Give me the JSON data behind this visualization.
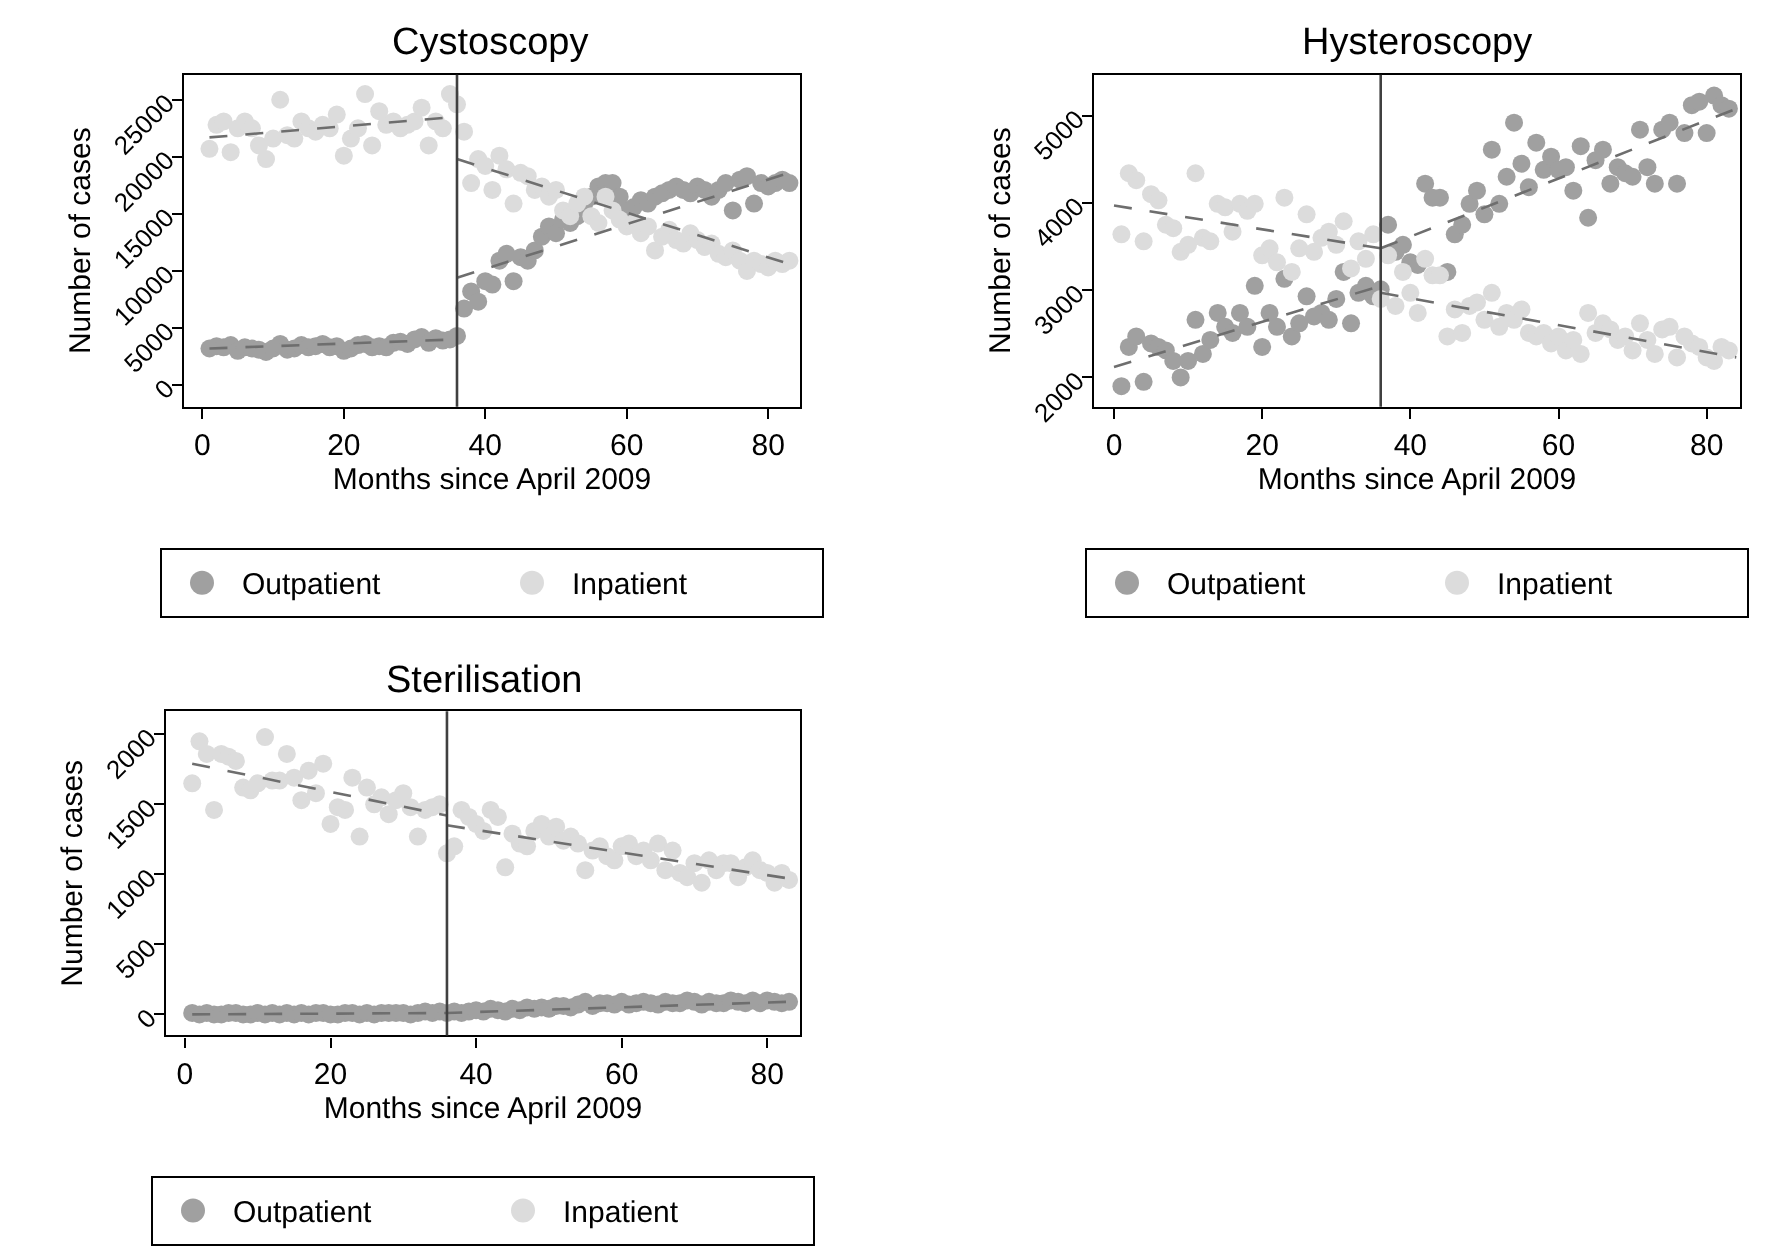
{
  "chart_data": [
    {
      "type": "scatter",
      "title": "Cystoscopy",
      "xlabel": "Months since April 2009",
      "ylabel": "Number of cases",
      "xlim": [
        -2.6,
        84.5
      ],
      "xticks": [
        0,
        20,
        40,
        60,
        80
      ],
      "ylim": [
        -1900,
        27200
      ],
      "yticks": [
        0,
        5000,
        10000,
        15000,
        20000,
        25000
      ],
      "grid": false,
      "legend": "bottom",
      "marker": "circle",
      "ref_lines": [
        {
          "axis": "x",
          "value": 36,
          "color": "#404040"
        }
      ],
      "series": [
        {
          "name": "Outpatient",
          "color": "#a0a0a0",
          "x": [
            1,
            2,
            3,
            4,
            5,
            6,
            7,
            8,
            9,
            10,
            11,
            12,
            13,
            14,
            15,
            16,
            17,
            18,
            19,
            20,
            21,
            22,
            23,
            24,
            25,
            26,
            27,
            28,
            29,
            30,
            31,
            32,
            33,
            34,
            35,
            36,
            37,
            38,
            39,
            40,
            41,
            42,
            43,
            44,
            45,
            46,
            47,
            48,
            49,
            50,
            51,
            52,
            53,
            54,
            55,
            56,
            57,
            58,
            59,
            60,
            61,
            62,
            63,
            64,
            65,
            66,
            67,
            68,
            69,
            70,
            71,
            72,
            73,
            74,
            75,
            76,
            77,
            78,
            79,
            80,
            81,
            82,
            83
          ],
          "values": [
            3200,
            3400,
            3300,
            3500,
            3000,
            3300,
            3200,
            3100,
            2900,
            3200,
            3600,
            3100,
            3200,
            3500,
            3300,
            3400,
            3600,
            3300,
            3400,
            3000,
            3200,
            3500,
            3600,
            3300,
            3400,
            3300,
            3700,
            3800,
            3600,
            4000,
            4200,
            3700,
            4100,
            3900,
            4000,
            4300,
            6700,
            8200,
            7300,
            9100,
            8800,
            10900,
            11500,
            9100,
            11200,
            10900,
            11800,
            13000,
            13900,
            13300,
            14500,
            14200,
            14800,
            15900,
            16500,
            17400,
            17700,
            17700,
            16500,
            15300,
            15600,
            16200,
            15900,
            16500,
            16800,
            17100,
            17400,
            17100,
            16800,
            17400,
            17100,
            16500,
            17100,
            17700,
            15300,
            18000,
            18300,
            15900,
            17700,
            17400,
            17700,
            18000,
            17700
          ]
        },
        {
          "name": "Inpatient",
          "color": "#dcdcdc",
          "x": [
            1,
            2,
            3,
            4,
            5,
            6,
            7,
            8,
            9,
            10,
            11,
            12,
            13,
            14,
            15,
            16,
            17,
            18,
            19,
            20,
            21,
            22,
            23,
            24,
            25,
            26,
            27,
            28,
            29,
            30,
            31,
            32,
            33,
            34,
            35,
            36,
            37,
            38,
            39,
            40,
            41,
            42,
            43,
            44,
            45,
            46,
            47,
            48,
            49,
            50,
            51,
            52,
            53,
            54,
            55,
            56,
            57,
            58,
            59,
            60,
            61,
            62,
            63,
            64,
            65,
            66,
            67,
            68,
            69,
            70,
            71,
            72,
            73,
            74,
            75,
            76,
            77,
            78,
            79,
            80,
            81,
            82,
            83
          ],
          "values": [
            20700,
            22800,
            23100,
            20400,
            22500,
            23100,
            22500,
            21000,
            19800,
            21600,
            25000,
            21900,
            21600,
            23100,
            22500,
            22200,
            22800,
            22500,
            23700,
            20100,
            21600,
            22500,
            25500,
            21000,
            24000,
            22800,
            23100,
            22500,
            22800,
            23100,
            24300,
            21000,
            23100,
            22500,
            25500,
            24600,
            22200,
            17700,
            19800,
            19200,
            17100,
            20100,
            18900,
            15900,
            18600,
            18300,
            17100,
            17400,
            16500,
            17100,
            15300,
            14800,
            15900,
            16500,
            14800,
            14200,
            16500,
            15300,
            14500,
            13900,
            14200,
            13300,
            13900,
            11800,
            13000,
            13600,
            12700,
            12400,
            13300,
            12700,
            12100,
            12400,
            11500,
            11200,
            11800,
            10900,
            10000,
            10900,
            10600,
            10300,
            10900,
            10600,
            10900
          ]
        },
        {
          "type": "line",
          "color": "#6e6e6e",
          "line_style": "dashed",
          "marker": "none",
          "x": [
            1,
            36
          ],
          "values": [
            3200,
            4000
          ]
        },
        {
          "type": "line",
          "color": "#6e6e6e",
          "line_style": "dashed",
          "marker": "none",
          "x": [
            36,
            83
          ],
          "values": [
            9400,
            18600
          ]
        },
        {
          "type": "line",
          "color": "#6e6e6e",
          "line_style": "dashed",
          "marker": "none",
          "x": [
            1,
            36
          ],
          "values": [
            21700,
            23500
          ]
        },
        {
          "type": "line",
          "color": "#6e6e6e",
          "line_style": "dashed",
          "marker": "none",
          "x": [
            36,
            83
          ],
          "values": [
            19800,
            10600
          ]
        }
      ]
    },
    {
      "type": "scatter",
      "title": "Hysteroscopy",
      "xlabel": "Months since April 2009",
      "ylabel": "Number of cases",
      "xlim": [
        -2.7,
        84.5
      ],
      "xticks": [
        0,
        20,
        40,
        60,
        80
      ],
      "ylim": [
        1665,
        5470
      ],
      "yticks": [
        2000,
        3000,
        4000,
        5000
      ],
      "grid": false,
      "legend": "bottom",
      "marker": "circle",
      "ref_lines": [
        {
          "axis": "x",
          "value": 36,
          "color": "#404040"
        }
      ],
      "series": [
        {
          "name": "Outpatient",
          "color": "#a0a0a0",
          "x": [
            1,
            2,
            3,
            4,
            5,
            6,
            7,
            8,
            9,
            10,
            11,
            12,
            13,
            14,
            15,
            16,
            17,
            18,
            19,
            20,
            21,
            22,
            23,
            24,
            25,
            26,
            27,
            28,
            29,
            30,
            31,
            32,
            33,
            34,
            35,
            36,
            37,
            38,
            39,
            40,
            41,
            42,
            43,
            44,
            45,
            46,
            47,
            48,
            49,
            50,
            51,
            52,
            53,
            54,
            55,
            56,
            57,
            58,
            59,
            60,
            61,
            62,
            63,
            64,
            65,
            66,
            67,
            68,
            69,
            70,
            71,
            72,
            73,
            74,
            75,
            76,
            77,
            78,
            79,
            80,
            81,
            82,
            83
          ],
          "values": [
            1900,
            2350,
            2470,
            1950,
            2390,
            2350,
            2310,
            2190,
            2000,
            2190,
            2660,
            2270,
            2430,
            2740,
            2580,
            2510,
            2740,
            2580,
            3050,
            2350,
            2740,
            2580,
            3130,
            2470,
            2620,
            2930,
            2700,
            2740,
            2660,
            2900,
            3210,
            2620,
            2970,
            3050,
            2930,
            3010,
            3750,
            3440,
            3520,
            3320,
            3290,
            4220,
            4060,
            4060,
            3210,
            3640,
            3750,
            3990,
            4140,
            3870,
            4610,
            3990,
            4300,
            4920,
            4450,
            4180,
            4690,
            4380,
            4530,
            4380,
            4410,
            4140,
            4650,
            3830,
            4490,
            4610,
            4220,
            4410,
            4340,
            4300,
            4840,
            4410,
            4220,
            4840,
            4920,
            4220,
            4800,
            5120,
            5160,
            4800,
            5230,
            5120,
            5080
          ]
        },
        {
          "name": "Inpatient",
          "color": "#dcdcdc",
          "x": [
            1,
            2,
            3,
            4,
            5,
            6,
            7,
            8,
            9,
            10,
            11,
            12,
            13,
            14,
            15,
            16,
            17,
            18,
            19,
            20,
            21,
            22,
            23,
            24,
            25,
            26,
            27,
            28,
            29,
            30,
            31,
            32,
            33,
            34,
            35,
            36,
            37,
            38,
            39,
            40,
            41,
            42,
            43,
            44,
            45,
            46,
            47,
            48,
            49,
            50,
            51,
            52,
            53,
            54,
            55,
            56,
            57,
            58,
            59,
            60,
            61,
            62,
            63,
            64,
            65,
            66,
            67,
            68,
            69,
            70,
            71,
            72,
            73,
            74,
            75,
            76,
            77,
            78,
            79,
            80,
            81,
            82,
            83
          ],
          "values": [
            3640,
            4340,
            4260,
            3560,
            4100,
            4030,
            3750,
            3710,
            3440,
            3520,
            4340,
            3600,
            3560,
            3990,
            3950,
            3670,
            3990,
            3910,
            3990,
            3400,
            3480,
            3320,
            4060,
            3210,
            3480,
            3870,
            3440,
            3600,
            3670,
            3520,
            3790,
            3250,
            3560,
            3360,
            3640,
            2900,
            3400,
            2820,
            3210,
            2970,
            2740,
            3360,
            3170,
            3170,
            2470,
            2780,
            2510,
            2820,
            2860,
            2660,
            2970,
            2580,
            2740,
            2660,
            2780,
            2510,
            2470,
            2510,
            2390,
            2470,
            2310,
            2430,
            2270,
            2740,
            2510,
            2620,
            2550,
            2430,
            2470,
            2310,
            2620,
            2430,
            2270,
            2550,
            2580,
            2230,
            2470,
            2390,
            2350,
            2230,
            2190,
            2350,
            2310
          ]
        },
        {
          "type": "line",
          "color": "#6e6e6e",
          "line_style": "dashed",
          "marker": "none",
          "x": [
            0,
            36
          ],
          "values": [
            2120,
            3050
          ]
        },
        {
          "type": "line",
          "color": "#6e6e6e",
          "line_style": "dashed",
          "marker": "none",
          "x": [
            36,
            84
          ],
          "values": [
            3480,
            5080
          ]
        },
        {
          "type": "line",
          "color": "#6e6e6e",
          "line_style": "dashed",
          "marker": "none",
          "x": [
            0,
            36
          ],
          "values": [
            3970,
            3480
          ]
        },
        {
          "type": "line",
          "color": "#6e6e6e",
          "line_style": "dashed",
          "marker": "none",
          "x": [
            36,
            84
          ],
          "values": [
            2970,
            2230
          ]
        }
      ]
    },
    {
      "type": "scatter",
      "title": "Sterilisation",
      "xlabel": "Months since April 2009",
      "ylabel": "Number of cases",
      "xlim": [
        -2.6,
        84.5
      ],
      "xticks": [
        0,
        20,
        40,
        60,
        80
      ],
      "ylim": [
        -150,
        2165
      ],
      "yticks": [
        0,
        500,
        1000,
        1500,
        2000
      ],
      "grid": false,
      "legend": "bottom",
      "marker": "circle",
      "ref_lines": [
        {
          "axis": "x",
          "value": 36,
          "color": "#404040"
        }
      ],
      "series": [
        {
          "name": "Outpatient",
          "color": "#a0a0a0",
          "x": [
            1,
            2,
            3,
            4,
            5,
            6,
            7,
            8,
            9,
            10,
            11,
            12,
            13,
            14,
            15,
            16,
            17,
            18,
            19,
            20,
            21,
            22,
            23,
            24,
            25,
            26,
            27,
            28,
            29,
            30,
            31,
            32,
            33,
            34,
            35,
            36,
            37,
            38,
            39,
            40,
            41,
            42,
            43,
            44,
            45,
            46,
            47,
            48,
            49,
            50,
            51,
            52,
            53,
            54,
            55,
            56,
            57,
            58,
            59,
            60,
            61,
            62,
            63,
            64,
            65,
            66,
            67,
            68,
            69,
            70,
            71,
            72,
            73,
            74,
            75,
            76,
            77,
            78,
            79,
            80,
            81,
            82,
            83
          ],
          "values": [
            10,
            0,
            10,
            0,
            0,
            10,
            10,
            0,
            0,
            10,
            0,
            10,
            0,
            10,
            0,
            10,
            0,
            10,
            10,
            0,
            0,
            10,
            10,
            0,
            10,
            0,
            10,
            10,
            10,
            10,
            0,
            10,
            20,
            10,
            20,
            10,
            20,
            10,
            20,
            30,
            20,
            40,
            30,
            20,
            40,
            30,
            50,
            40,
            50,
            40,
            60,
            60,
            50,
            70,
            90,
            60,
            80,
            80,
            70,
            90,
            70,
            80,
            90,
            80,
            70,
            90,
            80,
            80,
            100,
            90,
            70,
            90,
            80,
            80,
            100,
            90,
            80,
            100,
            80,
            100,
            90,
            80,
            90
          ]
        },
        {
          "name": "Inpatient",
          "color": "#dcdcdc",
          "x": [
            1,
            2,
            3,
            4,
            5,
            6,
            7,
            8,
            9,
            10,
            11,
            12,
            13,
            14,
            15,
            16,
            17,
            18,
            19,
            20,
            21,
            22,
            23,
            24,
            25,
            26,
            27,
            28,
            29,
            30,
            31,
            32,
            33,
            34,
            35,
            36,
            37,
            38,
            39,
            40,
            41,
            42,
            43,
            44,
            45,
            46,
            47,
            48,
            49,
            50,
            51,
            52,
            53,
            54,
            55,
            56,
            57,
            58,
            59,
            60,
            61,
            62,
            63,
            64,
            65,
            66,
            67,
            68,
            69,
            70,
            71,
            72,
            73,
            74,
            75,
            76,
            77,
            78,
            79,
            80,
            81,
            82,
            83
          ],
          "values": [
            1650,
            1950,
            1860,
            1460,
            1860,
            1840,
            1810,
            1620,
            1600,
            1650,
            1980,
            1670,
            1670,
            1860,
            1690,
            1530,
            1740,
            1580,
            1790,
            1360,
            1480,
            1460,
            1690,
            1270,
            1620,
            1500,
            1550,
            1430,
            1530,
            1580,
            1480,
            1270,
            1460,
            1480,
            1500,
            1150,
            1200,
            1460,
            1410,
            1360,
            1310,
            1460,
            1410,
            1050,
            1290,
            1220,
            1200,
            1310,
            1360,
            1270,
            1340,
            1240,
            1270,
            1220,
            1030,
            1170,
            1200,
            1130,
            1100,
            1200,
            1220,
            1130,
            1170,
            1100,
            1220,
            1030,
            1170,
            1010,
            980,
            1080,
            940,
            1100,
            1030,
            1080,
            1080,
            980,
            1050,
            1100,
            1030,
            1010,
            940,
            1010,
            960
          ]
        },
        {
          "type": "line",
          "color": "#6e6e6e",
          "line_style": "dashed",
          "marker": "none",
          "x": [
            1,
            36,
            83
          ],
          "values": [
            0,
            10,
            90
          ]
        },
        {
          "type": "line",
          "color": "#6e6e6e",
          "line_style": "dashed",
          "marker": "none",
          "x": [
            1,
            36
          ],
          "values": [
            1790,
            1420
          ]
        },
        {
          "type": "line",
          "color": "#6e6e6e",
          "line_style": "dashed",
          "marker": "none",
          "x": [
            36,
            83
          ],
          "values": [
            1350,
            970
          ]
        }
      ]
    }
  ]
}
